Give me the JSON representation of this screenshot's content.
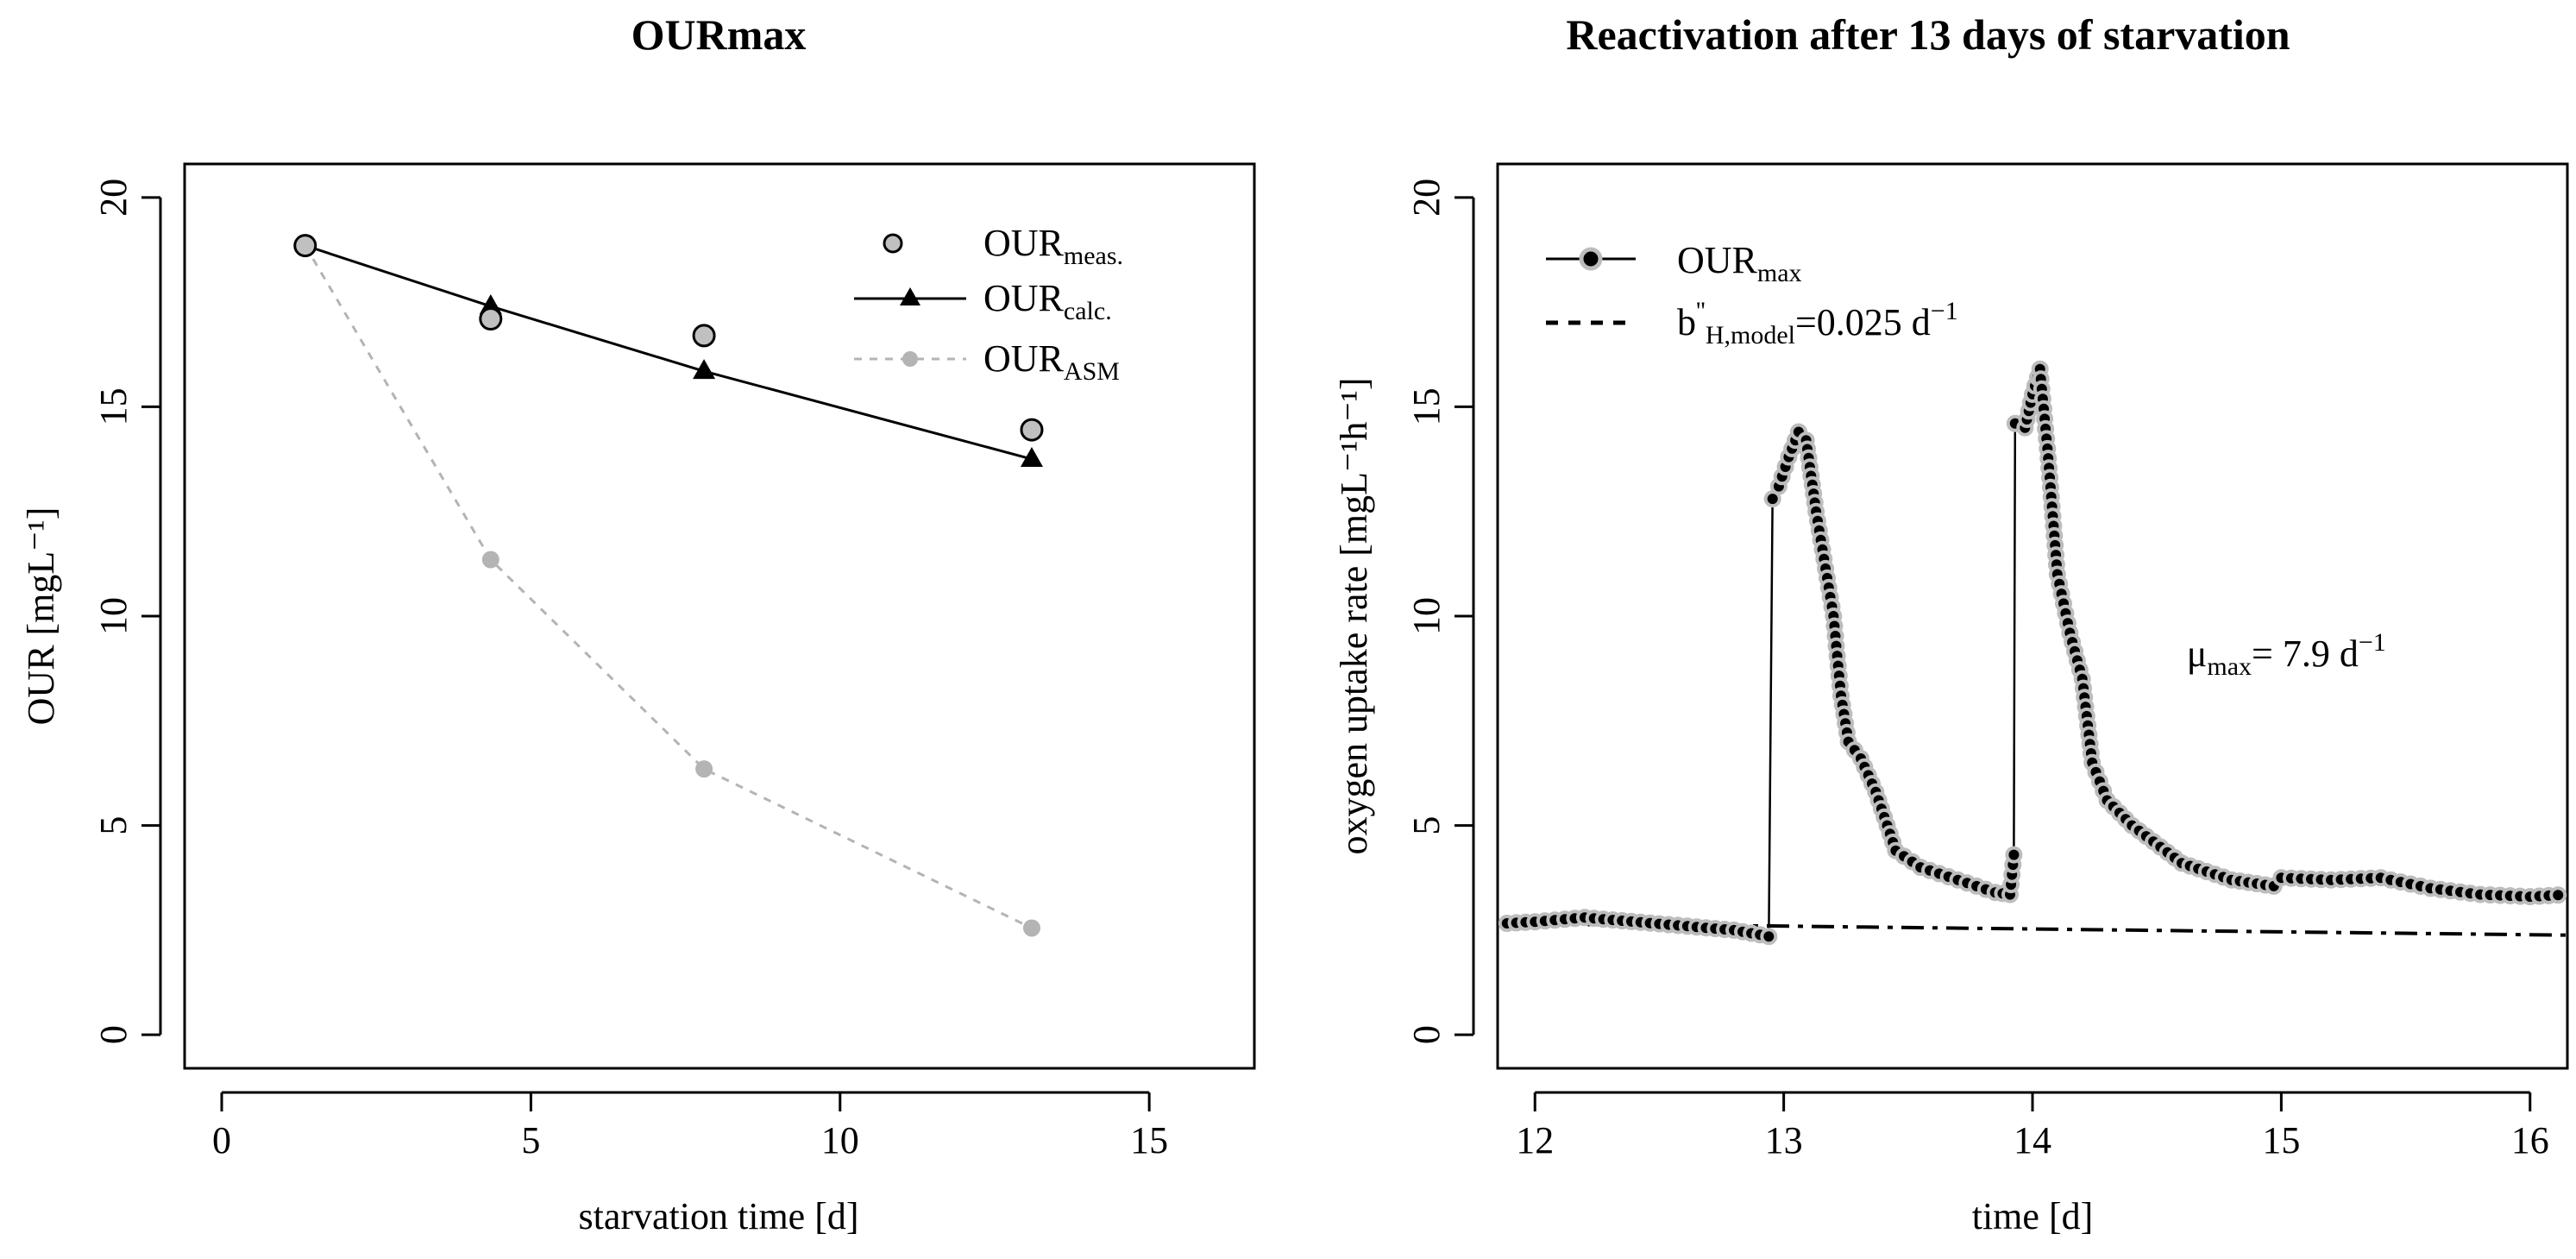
{
  "chart_data": [
    {
      "type": "scatter",
      "title": "OURmax",
      "xlabel": "starvation time [d]",
      "ylabel": "OUR [mgL⁻¹]",
      "xlim": [
        -0.6,
        16.7
      ],
      "ylim": [
        -0.8,
        20.8
      ],
      "xticks": [
        "0",
        "5",
        "10",
        "15"
      ],
      "xtick_values": [
        0,
        5,
        10,
        15
      ],
      "yticks": [
        "0",
        "5",
        "10",
        "15",
        "20"
      ],
      "ytick_values": [
        0,
        5,
        10,
        15,
        20
      ],
      "legend_position": "top-right",
      "series": [
        {
          "name": "OURmeas.",
          "label_main": "OUR",
          "label_sub": "meas.",
          "style": "points",
          "marker": "circle",
          "fill": "#c0c0c0",
          "x": [
            1.35,
            4.35,
            7.8,
            13.1
          ],
          "y": [
            18.85,
            17.1,
            16.7,
            14.45
          ]
        },
        {
          "name": "OURcalc.",
          "label_main": "OUR",
          "label_sub": "calc.",
          "style": "line",
          "marker": "triangle",
          "color": "#000000",
          "x": [
            1.35,
            4.35,
            7.8,
            13.1
          ],
          "y": [
            18.85,
            17.4,
            15.85,
            13.75
          ]
        },
        {
          "name": "OURASM",
          "label_main": "OUR",
          "label_sub": "ASM",
          "style": "dashed-line",
          "marker": "dot",
          "color": "#b4b4b4",
          "x": [
            1.35,
            4.35,
            7.8,
            13.1
          ],
          "y": [
            18.85,
            11.35,
            6.35,
            2.55
          ]
        }
      ]
    },
    {
      "type": "line",
      "title": "Reactivation after 13 days of starvation",
      "xlabel": "time [d]",
      "ylabel": "oxygen uptake rate [mgL⁻¹h⁻¹]",
      "xlim": [
        11.85,
        16.15
      ],
      "ylim": [
        -0.8,
        20.8
      ],
      "xticks": [
        "12",
        "13",
        "14",
        "15",
        "16"
      ],
      "xtick_values": [
        12,
        13,
        14,
        15,
        16
      ],
      "yticks": [
        "0",
        "5",
        "10",
        "15",
        "20"
      ],
      "ytick_values": [
        0,
        5,
        10,
        15,
        20
      ],
      "legend_position": "top-left",
      "annotation": {
        "main": "μ",
        "sub": "max",
        "rest": "= 7.9 d",
        "sup": "−1",
        "x": 14.62,
        "y": 8.8
      },
      "series": [
        {
          "name": "OURmax",
          "label_main": "OUR",
          "label_sub": "max",
          "style": "line-points",
          "knots": [
            [
              11.85,
              2.65
            ],
            [
              12.0,
              2.7
            ],
            [
              12.2,
              2.8
            ],
            [
              12.5,
              2.65
            ],
            [
              12.8,
              2.5
            ],
            [
              12.94,
              2.35
            ],
            [
              12.955,
              12.8
            ],
            [
              12.98,
              13.1
            ],
            [
              13.02,
              13.8
            ],
            [
              13.06,
              14.4
            ],
            [
              13.09,
              14.2
            ],
            [
              13.13,
              12.5
            ],
            [
              13.2,
              10.0
            ],
            [
              13.23,
              8.1
            ],
            [
              13.26,
              7.0
            ],
            [
              13.31,
              6.6
            ],
            [
              13.37,
              5.8
            ],
            [
              13.45,
              4.4
            ],
            [
              13.55,
              4.0
            ],
            [
              13.7,
              3.7
            ],
            [
              13.85,
              3.4
            ],
            [
              13.91,
              3.35
            ],
            [
              13.925,
              4.3
            ],
            [
              13.93,
              14.6
            ],
            [
              13.97,
              14.5
            ],
            [
              14.0,
              15.3
            ],
            [
              14.03,
              15.9
            ],
            [
              14.06,
              14.0
            ],
            [
              14.1,
              11.0
            ],
            [
              14.15,
              9.6
            ],
            [
              14.2,
              8.5
            ],
            [
              14.24,
              6.5
            ],
            [
              14.3,
              5.6
            ],
            [
              14.4,
              5.0
            ],
            [
              14.6,
              4.1
            ],
            [
              14.8,
              3.7
            ],
            [
              14.97,
              3.55
            ],
            [
              15.0,
              3.75
            ],
            [
              15.2,
              3.7
            ],
            [
              15.4,
              3.75
            ],
            [
              15.6,
              3.5
            ],
            [
              15.8,
              3.35
            ],
            [
              16.0,
              3.3
            ],
            [
              16.15,
              3.35
            ]
          ]
        },
        {
          "name": "b''H,model=0.025 d⁻¹",
          "label_main": "b",
          "label_sup": "''",
          "label_sub": "H,model",
          "label_rest": "=0.025 d",
          "label_rest_sup": "−1",
          "style": "dash-dot",
          "x": [
            11.85,
            12.94,
            16.15
          ],
          "y": [
            2.65,
            2.6,
            2.38
          ]
        }
      ]
    }
  ]
}
